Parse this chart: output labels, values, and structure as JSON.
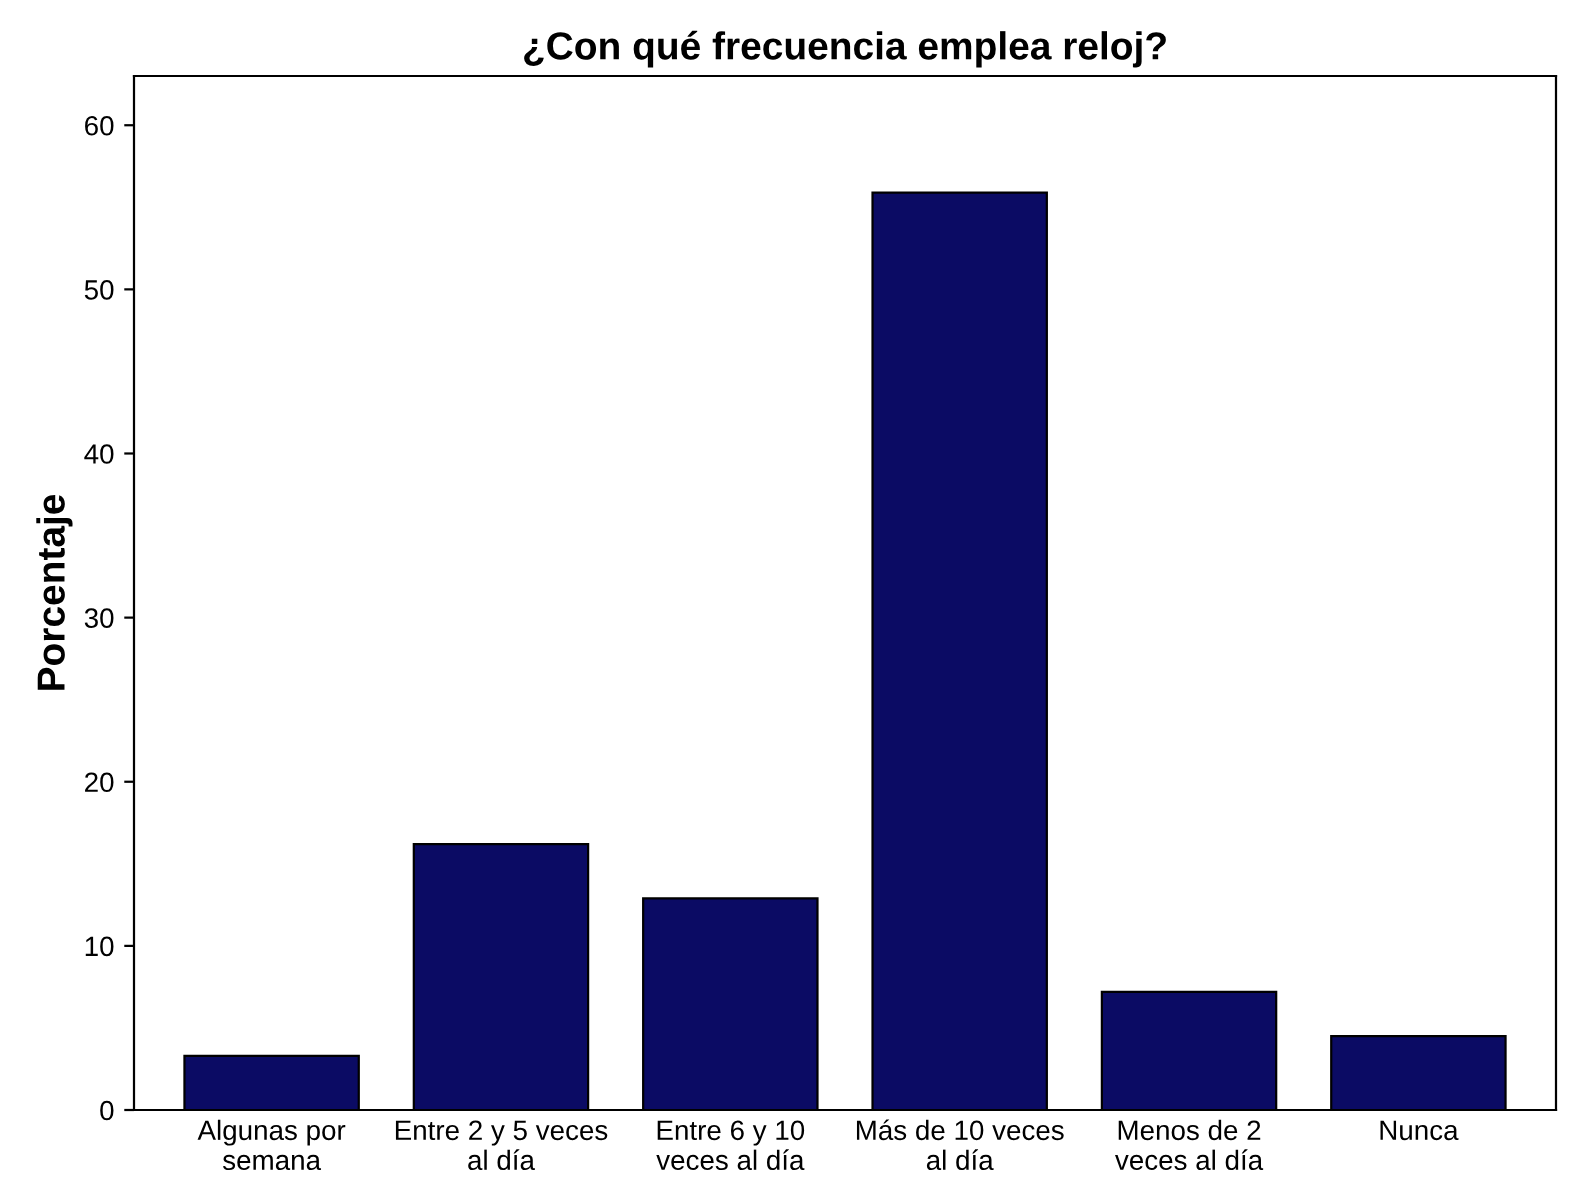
{
  "chart_data": {
    "type": "bar",
    "title": "¿Con qué frecuencia emplea reloj?",
    "ylabel": "Porcentaje",
    "categories": [
      "Algunas por\nsemana",
      "Entre 2 y 5 veces\nal día",
      "Entre 6 y 10\nveces al día",
      "Más de 10 veces\nal día",
      "Menos de 2\nveces al día",
      "Nunca"
    ],
    "values": [
      3.3,
      16.2,
      12.9,
      55.9,
      7.2,
      4.5
    ],
    "color": "#0b0b64",
    "ylim": [
      0,
      63
    ],
    "yticks": [
      0,
      10,
      20,
      30,
      40,
      50,
      60
    ],
    "grid": false
  }
}
